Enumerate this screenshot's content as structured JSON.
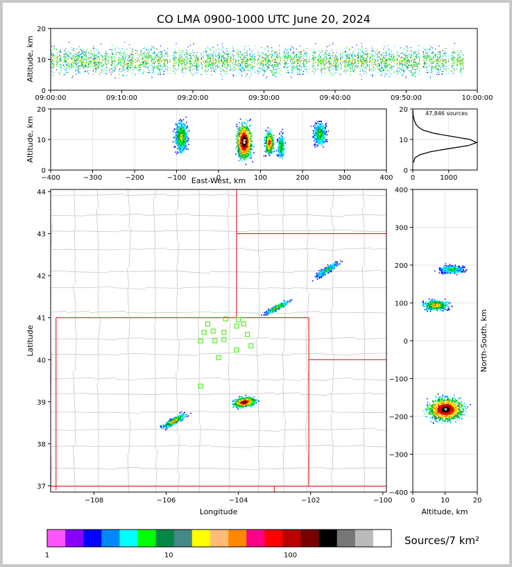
{
  "chart_data": {
    "type": "heatmap",
    "title": "CO LMA 0900-1000 UTC June 20, 2024",
    "time_height": {
      "xlabel": "",
      "ylabel": "Altitude, km",
      "x_ticks": [
        "09:00:00",
        "09:10:00",
        "09:20:00",
        "09:30:00",
        "09:40:00",
        "09:50:00",
        "10:00:00"
      ],
      "y_ticks": [
        "0",
        "10",
        "20"
      ],
      "xlim_minutes": [
        0,
        60
      ],
      "ylim": [
        0,
        20
      ]
    },
    "ew_height": {
      "xlabel": "East-West, km",
      "ylabel": "Altitude, km",
      "x_ticks": [
        "−400",
        "−300",
        "−200",
        "−100",
        "0",
        "100",
        "200",
        "300",
        "400"
      ],
      "y_ticks": [
        "0",
        "10",
        "20"
      ],
      "xlim": [
        -400,
        400
      ],
      "ylim": [
        0,
        20
      ],
      "clusters_ew_km": [
        -90,
        60,
        120,
        145,
        240
      ]
    },
    "histogram": {
      "annotation": "47,846 sources",
      "x_ticks": [
        "0",
        "1000"
      ],
      "y_ticks": [
        "0",
        "10",
        "20"
      ],
      "profile": [
        {
          "alt": 2.5,
          "count": 20
        },
        {
          "alt": 4,
          "count": 60
        },
        {
          "alt": 5,
          "count": 200
        },
        {
          "alt": 6,
          "count": 500
        },
        {
          "alt": 7,
          "count": 1000
        },
        {
          "alt": 8,
          "count": 1550
        },
        {
          "alt": 9,
          "count": 1780
        },
        {
          "alt": 10,
          "count": 1600
        },
        {
          "alt": 11,
          "count": 1100
        },
        {
          "alt": 12,
          "count": 600
        },
        {
          "alt": 13,
          "count": 300
        },
        {
          "alt": 14,
          "count": 160
        },
        {
          "alt": 15,
          "count": 90
        },
        {
          "alt": 16,
          "count": 50
        },
        {
          "alt": 17,
          "count": 25
        },
        {
          "alt": 18,
          "count": 10
        },
        {
          "alt": 19.5,
          "count": 3
        }
      ],
      "xlim": [
        0,
        1800
      ],
      "ylim": [
        0,
        20
      ]
    },
    "plan_view": {
      "xlabel": "Longitude",
      "ylabel": "Latitude",
      "x_ticks": [
        "−108",
        "−106",
        "−104",
        "−102",
        "−100"
      ],
      "y_ticks": [
        "37",
        "38",
        "39",
        "40",
        "41",
        "42",
        "43",
        "44"
      ],
      "xlim": [
        -109.2,
        -99.9
      ],
      "ylim": [
        36.85,
        44.05
      ],
      "clusters": [
        {
          "lon": -101.55,
          "lat": 42.15
        },
        {
          "lon": -102.95,
          "lat": 41.25
        },
        {
          "lon": -103.85,
          "lat": 39.0
        },
        {
          "lon": -105.8,
          "lat": 38.55
        }
      ],
      "stations": [
        {
          "lon": -104.85,
          "lat": 40.85
        },
        {
          "lon": -104.35,
          "lat": 40.97
        },
        {
          "lon": -104.0,
          "lat": 40.95
        },
        {
          "lon": -103.85,
          "lat": 40.85
        },
        {
          "lon": -104.05,
          "lat": 40.8
        },
        {
          "lon": -104.95,
          "lat": 40.65
        },
        {
          "lon": -104.7,
          "lat": 40.68
        },
        {
          "lon": -104.4,
          "lat": 40.65
        },
        {
          "lon": -103.75,
          "lat": 40.6
        },
        {
          "lon": -105.05,
          "lat": 40.45
        },
        {
          "lon": -104.65,
          "lat": 40.45
        },
        {
          "lon": -104.4,
          "lat": 40.48
        },
        {
          "lon": -103.65,
          "lat": 40.33
        },
        {
          "lon": -104.05,
          "lat": 40.23
        },
        {
          "lon": -104.55,
          "lat": 40.05
        },
        {
          "lon": -105.05,
          "lat": 39.37
        }
      ]
    },
    "ns_height": {
      "xlabel": "Altitude, km",
      "ylabel": "North-South, km",
      "x_ticks": [
        "0",
        "10",
        "20"
      ],
      "y_ticks": [
        "400",
        "300",
        "200",
        "100",
        "0",
        "−100",
        "−200",
        "−300",
        "−400"
      ],
      "xlim": [
        0,
        20
      ],
      "ylim": [
        -400,
        400
      ]
    },
    "colorbar": {
      "label": "Sources/7 km²",
      "ticks": [
        "1",
        "10",
        "100"
      ],
      "colors": [
        "#ff55ff",
        "#8800ff",
        "#0000ff",
        "#0088ff",
        "#00ffff",
        "#00ff00",
        "#008844",
        "#448888",
        "#ffff00",
        "#ffbb77",
        "#ff8800",
        "#ff0088",
        "#ff0000",
        "#bb0000",
        "#770000",
        "#000000",
        "#777777",
        "#bbbbbb",
        "#ffffff"
      ]
    }
  }
}
